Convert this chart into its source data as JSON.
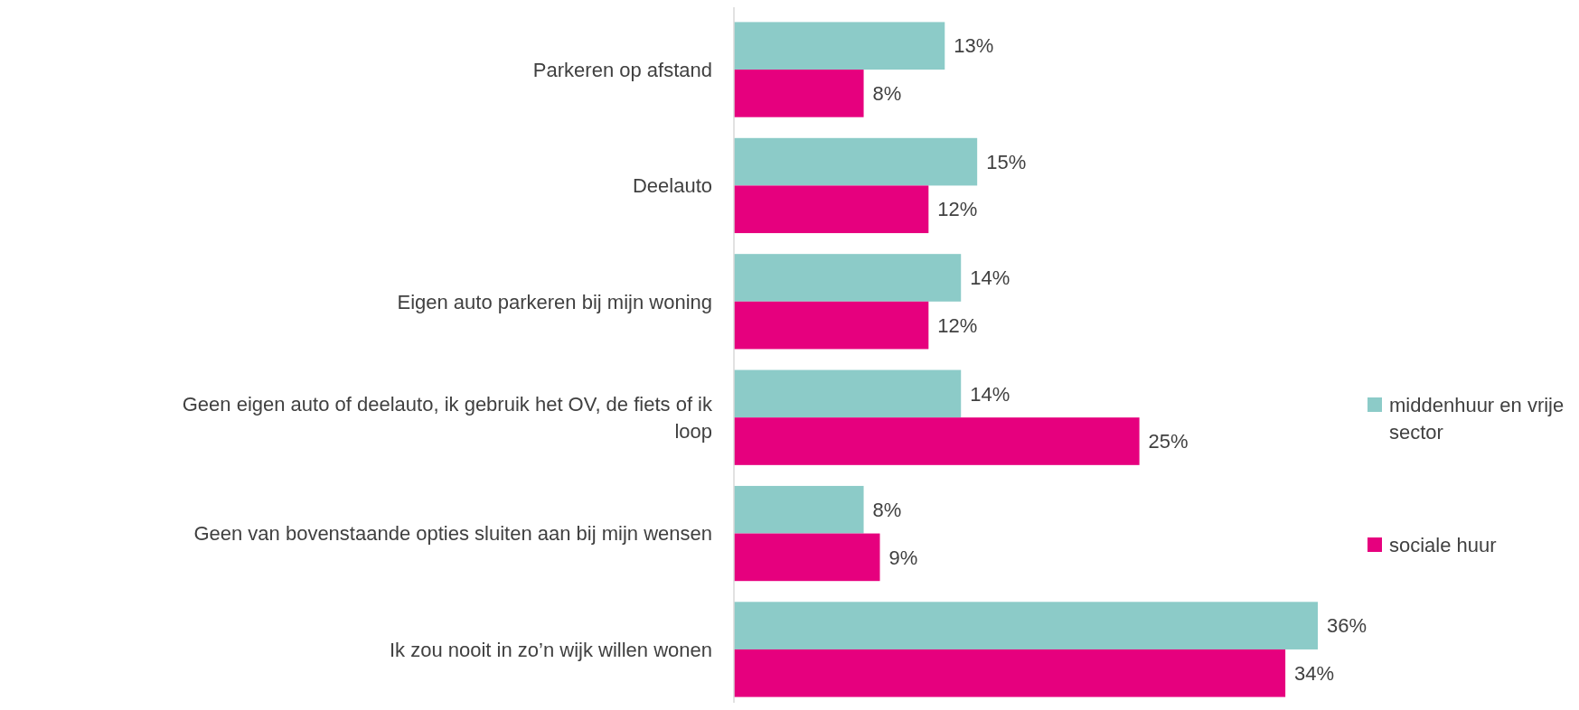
{
  "chart_data": {
    "type": "bar",
    "orientation": "horizontal",
    "categories": [
      "Parkeren op afstand",
      "Deelauto",
      "Eigen auto parkeren bij mijn woning",
      "Geen eigen auto of deelauto, ik gebruik het OV, de fiets of ik loop",
      "Geen van bovenstaande opties sluiten aan bij mijn wensen",
      "Ik zou nooit in zo’n wijk willen wonen"
    ],
    "series": [
      {
        "name": "middenhuur en vrije sector",
        "color": "#8ccbc8",
        "values": [
          13,
          15,
          14,
          14,
          8,
          36
        ],
        "value_labels": [
          "13%",
          "15%",
          "14%",
          "14%",
          "8%",
          "36%"
        ]
      },
      {
        "name": "sociale huur",
        "color": "#e6007e",
        "values": [
          8,
          12,
          12,
          25,
          9,
          34
        ],
        "value_labels": [
          "8%",
          "12%",
          "12%",
          "25%",
          "9%",
          "34%"
        ]
      }
    ],
    "legend": "right"
  }
}
